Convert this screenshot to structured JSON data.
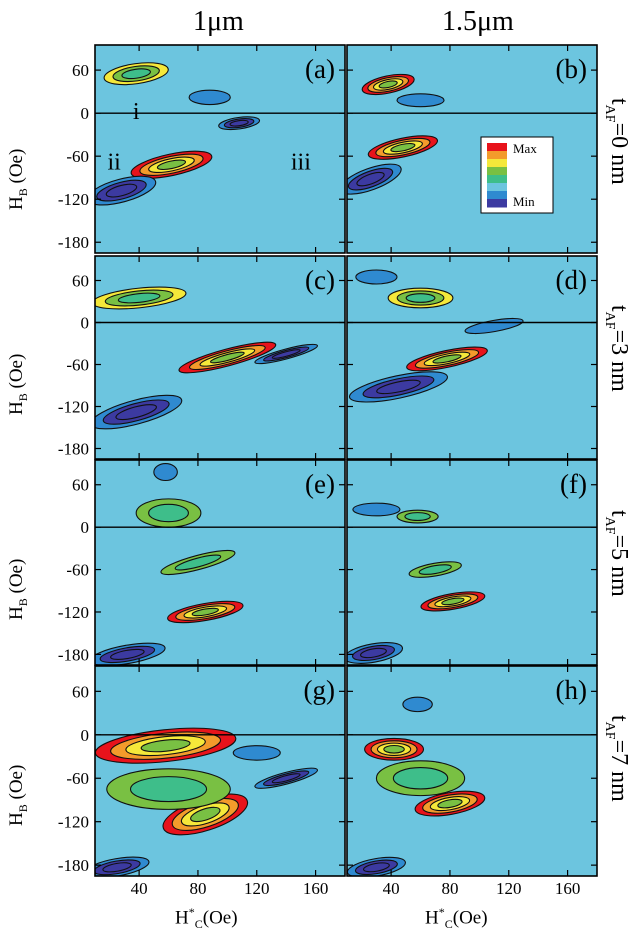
{
  "column_titles": [
    "1μm",
    "1.5μm"
  ],
  "row_labels": [
    {
      "t": "t",
      "sub": "AF",
      "rest": "=0 nm"
    },
    {
      "t": "t",
      "sub": "AF",
      "rest": "=3 nm"
    },
    {
      "t": "t",
      "sub": "AF",
      "rest": "=5 nm"
    },
    {
      "t": "t",
      "sub": "AF",
      "rest": "=7 nm"
    }
  ],
  "y_axis_title": {
    "main": "H",
    "sub": "B",
    "rest": " (Oe)"
  },
  "x_axis_title": {
    "main": "H",
    "sub": "C",
    "sup": "*",
    "rest": "(Oe)"
  },
  "colorbar": {
    "max_label": "Max",
    "min_label": "Min",
    "colors": [
      "#e8131b",
      "#f39b2b",
      "#f5e83a",
      "#79c043",
      "#3ebe8a",
      "#6cc5df",
      "#2f8ad0",
      "#3c3aa1"
    ]
  },
  "background_color": "#6cc5df",
  "chart_data": {
    "type": "heatmap",
    "x_ticks": [
      40,
      80,
      120,
      160
    ],
    "y_ticks": [
      60,
      0,
      -60,
      -120,
      -180
    ],
    "xlim": [
      10,
      180
    ],
    "ylim": [
      -195,
      95
    ],
    "panels": [
      {
        "id": "(a)",
        "row": 0,
        "col": 0,
        "annotations": [
          {
            "text": "i",
            "x": 38,
            "y": 0
          },
          {
            "text": "ii",
            "x": 23,
            "y": -70
          },
          {
            "text": "iii",
            "x": 150,
            "y": -70
          }
        ],
        "features": [
          {
            "x": 38,
            "y": 55,
            "rx": 22,
            "ry": 14,
            "level": 0.85,
            "rot": -8
          },
          {
            "x": 62,
            "y": -72,
            "rx": 28,
            "ry": 15,
            "level": 0.95,
            "rot": -12
          },
          {
            "x": 28,
            "y": -108,
            "rx": 24,
            "ry": 16,
            "level": 0.05,
            "rot": -15
          },
          {
            "x": 108,
            "y": -14,
            "rx": 14,
            "ry": 8,
            "level": 0.08,
            "rot": -8
          },
          {
            "x": 88,
            "y": 22,
            "rx": 14,
            "ry": 10,
            "level": 0.22,
            "rot": 0
          }
        ]
      },
      {
        "id": "(b)",
        "row": 0,
        "col": 1,
        "annotations": [],
        "features": [
          {
            "x": 38,
            "y": 40,
            "rx": 18,
            "ry": 12,
            "level": 0.95,
            "rot": -12
          },
          {
            "x": 48,
            "y": -48,
            "rx": 24,
            "ry": 13,
            "level": 0.95,
            "rot": -12
          },
          {
            "x": 26,
            "y": -92,
            "rx": 22,
            "ry": 15,
            "level": 0.05,
            "rot": -20
          },
          {
            "x": 60,
            "y": 18,
            "rx": 16,
            "ry": 9,
            "level": 0.2,
            "rot": 0
          }
        ]
      },
      {
        "id": "(c)",
        "row": 1,
        "col": 0,
        "annotations": [],
        "features": [
          {
            "x": 40,
            "y": 35,
            "rx": 32,
            "ry": 14,
            "level": 0.75,
            "rot": -6
          },
          {
            "x": 100,
            "y": -50,
            "rx": 34,
            "ry": 12,
            "level": 0.95,
            "rot": -15
          },
          {
            "x": 38,
            "y": -128,
            "rx": 32,
            "ry": 17,
            "level": 0.05,
            "rot": -15
          },
          {
            "x": 140,
            "y": -45,
            "rx": 22,
            "ry": 7,
            "level": 0.05,
            "rot": -15
          }
        ]
      },
      {
        "id": "(d)",
        "row": 1,
        "col": 1,
        "annotations": [],
        "features": [
          {
            "x": 60,
            "y": 35,
            "rx": 22,
            "ry": 14,
            "level": 0.72,
            "rot": 0
          },
          {
            "x": 78,
            "y": -52,
            "rx": 28,
            "ry": 12,
            "level": 0.95,
            "rot": -12
          },
          {
            "x": 45,
            "y": -92,
            "rx": 34,
            "ry": 16,
            "level": 0.05,
            "rot": -12
          },
          {
            "x": 110,
            "y": -5,
            "rx": 20,
            "ry": 8,
            "level": 0.15,
            "rot": -10
          },
          {
            "x": 30,
            "y": 65,
            "rx": 14,
            "ry": 10,
            "level": 0.15,
            "rot": 0
          }
        ]
      },
      {
        "id": "(e)",
        "row": 2,
        "col": 0,
        "annotations": [],
        "features": [
          {
            "x": 60,
            "y": 20,
            "rx": 22,
            "ry": 20,
            "level": 0.5,
            "rot": 0
          },
          {
            "x": 80,
            "y": -50,
            "rx": 26,
            "ry": 10,
            "level": 0.5,
            "rot": -15
          },
          {
            "x": 85,
            "y": -120,
            "rx": 26,
            "ry": 12,
            "level": 0.95,
            "rot": -10
          },
          {
            "x": 32,
            "y": -180,
            "rx": 26,
            "ry": 13,
            "level": 0.05,
            "rot": -10
          },
          {
            "x": 58,
            "y": 78,
            "rx": 8,
            "ry": 12,
            "level": 0.2,
            "rot": 0
          }
        ]
      },
      {
        "id": "(f)",
        "row": 2,
        "col": 1,
        "annotations": [],
        "features": [
          {
            "x": 58,
            "y": 15,
            "rx": 14,
            "ry": 9,
            "level": 0.55,
            "rot": 0
          },
          {
            "x": 70,
            "y": -60,
            "rx": 18,
            "ry": 9,
            "level": 0.55,
            "rot": -10
          },
          {
            "x": 82,
            "y": -105,
            "rx": 22,
            "ry": 11,
            "level": 0.95,
            "rot": -10
          },
          {
            "x": 28,
            "y": -178,
            "rx": 20,
            "ry": 13,
            "level": 0.05,
            "rot": -10
          },
          {
            "x": 30,
            "y": 25,
            "rx": 16,
            "ry": 9,
            "level": 0.15,
            "rot": 0
          }
        ]
      },
      {
        "id": "(g)",
        "row": 3,
        "col": 0,
        "annotations": [],
        "features": [
          {
            "x": 58,
            "y": -15,
            "rx": 48,
            "ry": 22,
            "level": 0.95,
            "rot": -6
          },
          {
            "x": 85,
            "y": -110,
            "rx": 30,
            "ry": 22,
            "level": 0.93,
            "rot": -18
          },
          {
            "x": 60,
            "y": -75,
            "rx": 42,
            "ry": 28,
            "level": 0.5,
            "rot": 0
          },
          {
            "x": 25,
            "y": -183,
            "rx": 22,
            "ry": 12,
            "level": 0.05,
            "rot": -10
          },
          {
            "x": 140,
            "y": -60,
            "rx": 22,
            "ry": 8,
            "level": 0.1,
            "rot": -15
          },
          {
            "x": 120,
            "y": -25,
            "rx": 16,
            "ry": 10,
            "level": 0.18,
            "rot": 0
          }
        ]
      },
      {
        "id": "(h)",
        "row": 3,
        "col": 1,
        "annotations": [],
        "features": [
          {
            "x": 42,
            "y": -20,
            "rx": 20,
            "ry": 15,
            "level": 0.92,
            "rot": 0
          },
          {
            "x": 80,
            "y": -95,
            "rx": 24,
            "ry": 15,
            "level": 0.95,
            "rot": -10
          },
          {
            "x": 30,
            "y": -183,
            "rx": 20,
            "ry": 12,
            "level": 0.05,
            "rot": -10
          },
          {
            "x": 60,
            "y": -60,
            "rx": 30,
            "ry": 24,
            "level": 0.45,
            "rot": 0
          },
          {
            "x": 58,
            "y": 42,
            "rx": 10,
            "ry": 10,
            "level": 0.2,
            "rot": 0
          }
        ]
      }
    ]
  }
}
